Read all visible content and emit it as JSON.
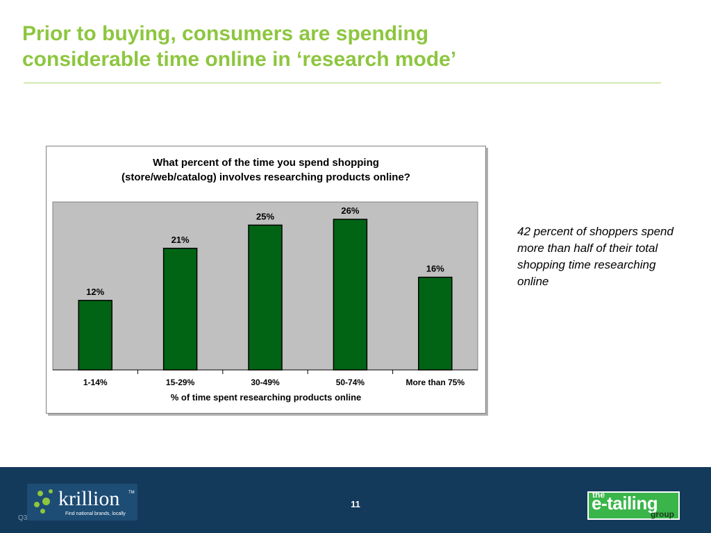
{
  "slide": {
    "title_line1": "Prior to buying, consumers are spending",
    "title_line2": "considerable time online in ‘research mode’",
    "callout": "42 percent of shoppers spend more than half of their total shopping time researching online",
    "page_number": "11",
    "footnote": "Q3"
  },
  "logos": {
    "krillion_name": "krillion",
    "krillion_tm": "TM",
    "krillion_tagline": "Find national brands, locally",
    "etailing_the": "the",
    "etailing_main": "e-tailing",
    "etailing_group": "group"
  },
  "colors": {
    "title": "#8dc63f",
    "bar_fill": "#006414",
    "plot_background": "#c0c0c0",
    "footer": "#143a5b"
  },
  "chart_data": {
    "type": "bar",
    "title_line1": "What percent of the time you spend shopping",
    "title_line2": "(store/web/catalog) involves researching products online?",
    "xlabel": "% of time spent researching products online",
    "ylabel": "",
    "categories": [
      "1-14%",
      "15-29%",
      "30-49%",
      "50-74%",
      "More than 75%"
    ],
    "values": [
      12,
      21,
      25,
      26,
      16
    ],
    "value_labels": [
      "12%",
      "21%",
      "25%",
      "26%",
      "16%"
    ],
    "ylim": [
      0,
      29
    ],
    "grid": false,
    "legend": "none"
  }
}
